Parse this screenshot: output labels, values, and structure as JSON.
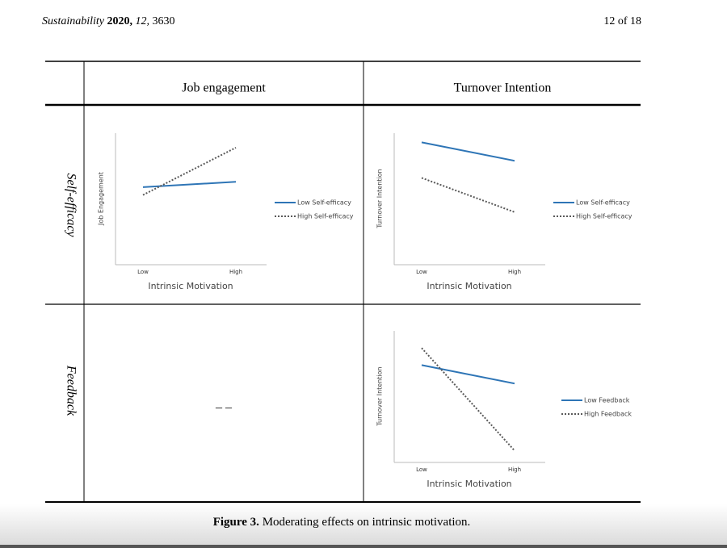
{
  "header": {
    "journal": "Sustainability",
    "year": "2020,",
    "volume": "12,",
    "article": "3630",
    "page": "12 of 18"
  },
  "table": {
    "columns": [
      "Job engagement",
      "Turnover Intention"
    ],
    "rows": [
      {
        "label": "Self-efficacy",
        "cells": [
          {
            "chart_data": {
              "type": "line",
              "x_label": "Intrinsic Motivation",
              "y_label": "Job Engagement",
              "categories": [
                "Low",
                "High"
              ],
              "ylim": [
                0,
                10
              ],
              "series": [
                {
                  "name": "Low Self-efficacy",
                  "color": "#2e75b6",
                  "style": "solid",
                  "values": [
                    5.9,
                    6.3
                  ]
                },
                {
                  "name": "High Self-efficacy",
                  "color": "#595959",
                  "style": "dotted",
                  "values": [
                    5.3,
                    8.9
                  ]
                }
              ]
            }
          },
          {
            "chart_data": {
              "type": "line",
              "x_label": "Intrinsic Motivation",
              "y_label": "Turnover Intention",
              "categories": [
                "Low",
                "High"
              ],
              "ylim": [
                0,
                10
              ],
              "series": [
                {
                  "name": "Low Self-efficacy",
                  "color": "#2e75b6",
                  "style": "solid",
                  "values": [
                    9.3,
                    7.9
                  ]
                },
                {
                  "name": "High Self-efficacy",
                  "color": "#595959",
                  "style": "dotted",
                  "values": [
                    6.6,
                    4.0
                  ]
                }
              ]
            }
          }
        ]
      },
      {
        "label": "Feedback",
        "cells": [
          {
            "text": "– –"
          },
          {
            "chart_data": {
              "type": "line",
              "x_label": "Intrinsic Motivation",
              "y_label": "Turnover Intention",
              "categories": [
                "Low",
                "High"
              ],
              "ylim": [
                0,
                10
              ],
              "series": [
                {
                  "name": "Low Feedback",
                  "color": "#2e75b6",
                  "style": "solid",
                  "values": [
                    7.4,
                    6.0
                  ]
                },
                {
                  "name": "High Feedback",
                  "color": "#595959",
                  "style": "dotted",
                  "values": [
                    8.7,
                    0.9
                  ]
                }
              ]
            }
          }
        ]
      }
    ]
  },
  "caption": {
    "label": "Figure 3.",
    "text": "Moderating effects on intrinsic motivation."
  }
}
